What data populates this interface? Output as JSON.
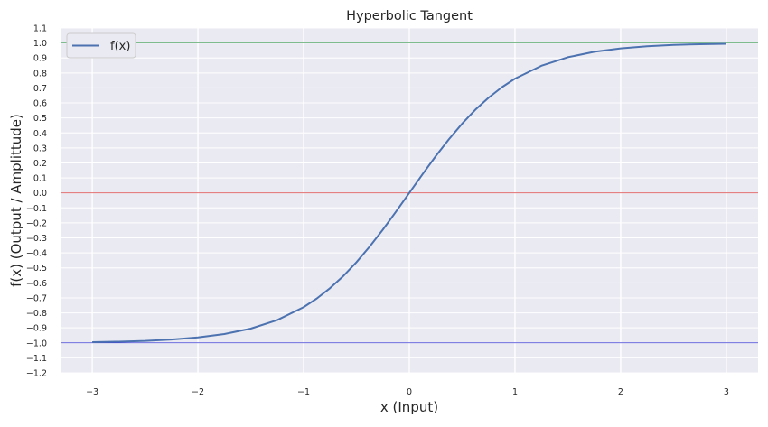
{
  "chart_data": {
    "type": "line",
    "title": "Hyperbolic Tangent",
    "xlabel": "x (Input)",
    "ylabel": "f(x) (Output / Amplittude)",
    "xlim": [
      -3.3,
      3.3
    ],
    "ylim": [
      -1.2,
      1.1
    ],
    "grid": true,
    "legend": {
      "placement": "top-left"
    },
    "x_ticks": [
      {
        "value": -3,
        "label": "−3"
      },
      {
        "value": -2,
        "label": "−2"
      },
      {
        "value": -1,
        "label": "−1"
      },
      {
        "value": 0,
        "label": "0"
      },
      {
        "value": 1,
        "label": "1"
      },
      {
        "value": 2,
        "label": "2"
      },
      {
        "value": 3,
        "label": "3"
      }
    ],
    "y_ticks": [
      {
        "value": 1.1,
        "label": "1.1"
      },
      {
        "value": 1.0,
        "label": "1.0"
      },
      {
        "value": 0.9,
        "label": "0.9"
      },
      {
        "value": 0.8,
        "label": "0.8"
      },
      {
        "value": 0.7,
        "label": "0.7"
      },
      {
        "value": 0.6,
        "label": "0.6"
      },
      {
        "value": 0.5,
        "label": "0.5"
      },
      {
        "value": 0.4,
        "label": "0.4"
      },
      {
        "value": 0.3,
        "label": "0.3"
      },
      {
        "value": 0.2,
        "label": "0.2"
      },
      {
        "value": 0.1,
        "label": "0.1"
      },
      {
        "value": 0.0,
        "label": "0.0"
      },
      {
        "value": -0.1,
        "label": "−0.1"
      },
      {
        "value": -0.2,
        "label": "−0.2"
      },
      {
        "value": -0.3,
        "label": "−0.3"
      },
      {
        "value": -0.4,
        "label": "−0.4"
      },
      {
        "value": -0.5,
        "label": "−0.5"
      },
      {
        "value": -0.6,
        "label": "−0.6"
      },
      {
        "value": -0.7,
        "label": "−0.7"
      },
      {
        "value": -0.8,
        "label": "−0.8"
      },
      {
        "value": -0.9,
        "label": "−0.9"
      },
      {
        "value": -1.0,
        "label": "−1.0"
      },
      {
        "value": -1.1,
        "label": "−1.1"
      },
      {
        "value": -1.2,
        "label": "−1.2"
      }
    ],
    "series": [
      {
        "name": "f(x)",
        "color": "#4c72b0",
        "x": [
          -3.0,
          -2.75,
          -2.5,
          -2.25,
          -2.0,
          -1.75,
          -1.5,
          -1.25,
          -1.0,
          -0.875,
          -0.75,
          -0.625,
          -0.5,
          -0.375,
          -0.25,
          -0.125,
          0.0,
          0.125,
          0.25,
          0.375,
          0.5,
          0.625,
          0.75,
          0.875,
          1.0,
          1.25,
          1.5,
          1.75,
          2.0,
          2.25,
          2.5,
          2.75,
          3.0
        ],
        "y": [
          -0.995,
          -0.992,
          -0.987,
          -0.978,
          -0.964,
          -0.941,
          -0.905,
          -0.848,
          -0.762,
          -0.704,
          -0.635,
          -0.555,
          -0.462,
          -0.358,
          -0.245,
          -0.124,
          0.0,
          0.124,
          0.245,
          0.358,
          0.462,
          0.555,
          0.635,
          0.704,
          0.762,
          0.848,
          0.905,
          0.941,
          0.964,
          0.978,
          0.987,
          0.992,
          0.995
        ]
      }
    ],
    "reference_lines": [
      {
        "orientation": "horizontal",
        "y": 1.0,
        "color": "#55a868"
      },
      {
        "orientation": "horizontal",
        "y": 0.0,
        "color": "#e05a5a"
      },
      {
        "orientation": "horizontal",
        "y": -1.0,
        "color": "#3a3ad6"
      }
    ],
    "colors": {
      "background": "#eaeaf2",
      "grid": "#ffffff"
    }
  }
}
